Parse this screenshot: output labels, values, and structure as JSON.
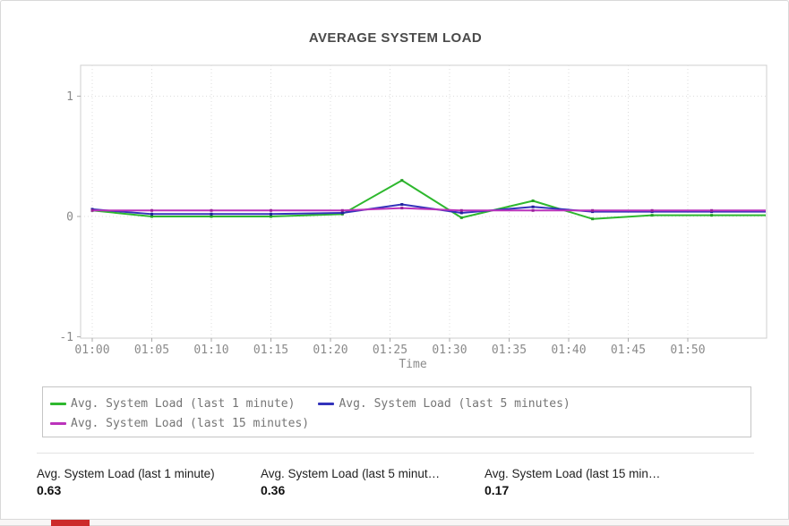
{
  "widget": {
    "title": "AVERAGE SYSTEM LOAD"
  },
  "chart_data": {
    "type": "line",
    "title": "AVERAGE SYSTEM LOAD",
    "xlabel": "Time",
    "ylabel": "",
    "x_ticks": [
      "01:00",
      "01:05",
      "01:10",
      "01:15",
      "01:20",
      "01:25",
      "01:30",
      "01:35",
      "01:40",
      "01:45",
      "01:50"
    ],
    "y_ticks": [
      1,
      0,
      -1
    ],
    "y_gridlines": [
      1,
      0
    ],
    "ylim": [
      -1,
      1.26
    ],
    "grid": "dotted",
    "legend_position": "bottom",
    "x": [
      "01:00",
      "01:05",
      "01:10",
      "01:15",
      "01:21",
      "01:26",
      "01:31",
      "01:37",
      "01:42",
      "01:47",
      "01:52"
    ],
    "series": [
      {
        "name": "Avg. System Load (last 1 minute)",
        "color": "#2eb82e",
        "marker_color": "#26a026",
        "values": [
          0.05,
          0.0,
          0.0,
          0.0,
          0.02,
          0.3,
          -0.01,
          0.13,
          -0.02,
          0.01,
          0.01
        ]
      },
      {
        "name": "Avg. System Load (last 5 minutes)",
        "color": "#3333bb",
        "marker_color": "#22229a",
        "values": [
          0.06,
          0.02,
          0.02,
          0.02,
          0.03,
          0.1,
          0.03,
          0.08,
          0.04,
          0.04,
          0.04
        ]
      },
      {
        "name": "Avg. System Load (last 15 minutes)",
        "color": "#bb33bb",
        "marker_color": "#9a229a",
        "values": [
          0.05,
          0.05,
          0.05,
          0.05,
          0.05,
          0.07,
          0.05,
          0.05,
          0.05,
          0.05,
          0.05
        ]
      }
    ]
  },
  "legend": {
    "items": [
      {
        "label": "Avg. System Load (last 1 minute)",
        "color": "#2eb82e"
      },
      {
        "label": "Avg. System Load (last 5 minutes)",
        "color": "#3333bb"
      },
      {
        "label": "Avg. System Load (last 15 minutes)",
        "color": "#bb33bb"
      }
    ]
  },
  "stats": [
    {
      "label": "Avg. System Load (last 1 minute)",
      "value": "0.63"
    },
    {
      "label": "Avg. System Load (last 5 minut…",
      "value": "0.36"
    },
    {
      "label": "Avg. System Load (last 15 min…",
      "value": "0.17"
    }
  ],
  "colors": {
    "accent_red": "#cc2b2b"
  }
}
